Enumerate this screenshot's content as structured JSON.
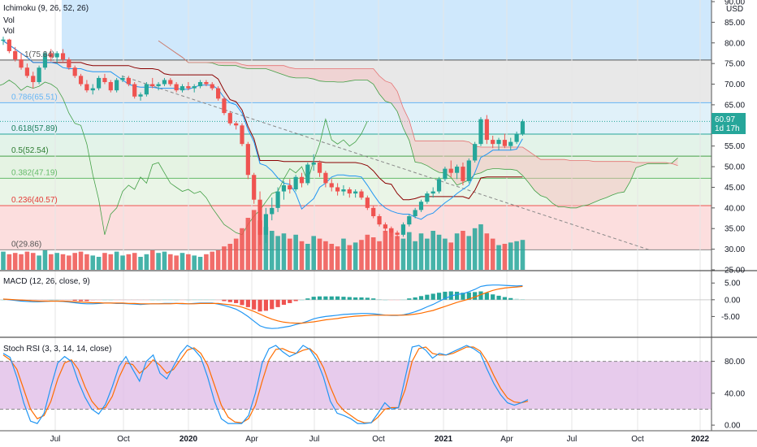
{
  "chart_data": {
    "type": "candlestick",
    "indicator_labels": {
      "ichimoku": "Ichimoku (9, 26, 52, 26)",
      "vol1": "Vol",
      "vol2": "Vol",
      "macd": "MACD (12, 26, close, 9)",
      "stoch": "Stoch RSI (3, 3, 14, 14, close)"
    },
    "currency": "USD",
    "price_axis": [
      "90.00",
      "85.00",
      "80.00",
      "75.00",
      "70.00",
      "65.00",
      "60.00",
      "55.00",
      "50.00",
      "45.00",
      "40.00",
      "35.00",
      "30.00",
      "25.00"
    ],
    "macd_axis": [
      "5.00",
      "0.00",
      "-5.00"
    ],
    "stoch_axis": [
      "80.00",
      "40.00",
      "0.00"
    ],
    "time_axis": [
      {
        "label": "Jul",
        "bold": false
      },
      {
        "label": "Oct",
        "bold": false
      },
      {
        "label": "2020",
        "bold": true
      },
      {
        "label": "Apr",
        "bold": false
      },
      {
        "label": "Jul",
        "bold": false
      },
      {
        "label": "Oct",
        "bold": false
      },
      {
        "label": "2021",
        "bold": true
      },
      {
        "label": "Apr",
        "bold": false
      },
      {
        "label": "Jul",
        "bold": false
      },
      {
        "label": "Oct",
        "bold": false
      },
      {
        "label": "2022",
        "bold": true
      }
    ],
    "last_price": "60.97",
    "last_price_timer": "1d 17h",
    "fib_levels": [
      {
        "label": "1(75.84)",
        "value": 75.84
      },
      {
        "label": "0.786(65.51)",
        "value": 65.51
      },
      {
        "label": "0.618(57.89)",
        "value": 57.89
      },
      {
        "label": "0.5(52.54)",
        "value": 52.54
      },
      {
        "label": "0.382(47.19)",
        "value": 47.19
      },
      {
        "label": "0.236(40.57)",
        "value": 40.57
      },
      {
        "label": "0(29.86)",
        "value": 29.86
      }
    ],
    "colors": {
      "up": "#26a69a",
      "down": "#ef5350",
      "stoch_band": "#e1bee7",
      "macd_line": "#2196f3",
      "signal_line": "#ff6d00"
    },
    "candles": [
      [
        80.5,
        81.5,
        79.5,
        80.8
      ],
      [
        80.8,
        81.0,
        77.5,
        78.0
      ],
      [
        78.0,
        79.0,
        75.5,
        76.0
      ],
      [
        76.0,
        77.5,
        73.5,
        74.0
      ],
      [
        74.0,
        75.0,
        71.5,
        72.0
      ],
      [
        72.0,
        73.0,
        69.0,
        70.5
      ],
      [
        70.5,
        74.5,
        70.0,
        74.0
      ],
      [
        74.0,
        78.0,
        73.5,
        77.5
      ],
      [
        77.5,
        78.5,
        75.5,
        76.5
      ],
      [
        76.5,
        78.0,
        75.0,
        77.5
      ],
      [
        77.5,
        78.5,
        75.5,
        76.0
      ],
      [
        76.0,
        76.5,
        73.5,
        74.0
      ],
      [
        74.0,
        74.5,
        71.5,
        72.0
      ],
      [
        72.0,
        72.5,
        69.5,
        70.0
      ],
      [
        70.0,
        71.0,
        68.0,
        68.5
      ],
      [
        68.5,
        70.0,
        67.5,
        69.0
      ],
      [
        69.0,
        72.0,
        68.5,
        71.5
      ],
      [
        71.5,
        72.5,
        70.0,
        70.5
      ],
      [
        70.5,
        71.0,
        68.0,
        68.5
      ],
      [
        68.5,
        71.5,
        68.0,
        71.0
      ],
      [
        71.0,
        72.0,
        70.5,
        71.5
      ],
      [
        71.5,
        72.0,
        69.5,
        70.0
      ],
      [
        70.0,
        70.5,
        66.5,
        67.0
      ],
      [
        67.0,
        68.0,
        66.0,
        67.5
      ],
      [
        67.5,
        70.5,
        67.0,
        70.0
      ],
      [
        70.0,
        71.5,
        69.0,
        69.5
      ],
      [
        69.5,
        70.5,
        68.5,
        70.0
      ],
      [
        70.0,
        71.5,
        69.5,
        71.0
      ],
      [
        71.0,
        71.5,
        69.5,
        70.0
      ],
      [
        70.0,
        70.5,
        68.0,
        68.5
      ],
      [
        68.5,
        70.0,
        68.0,
        69.5
      ],
      [
        69.5,
        70.5,
        68.5,
        69.0
      ],
      [
        69.0,
        70.0,
        68.0,
        69.5
      ],
      [
        69.5,
        71.0,
        69.0,
        70.5
      ],
      [
        70.5,
        71.0,
        69.5,
        70.0
      ],
      [
        70.0,
        70.5,
        68.5,
        69.0
      ],
      [
        69.0,
        69.5,
        66.0,
        66.5
      ],
      [
        66.5,
        67.0,
        62.5,
        63.0
      ],
      [
        63.0,
        63.5,
        60.0,
        60.5
      ],
      [
        60.5,
        61.0,
        59.0,
        60.0
      ],
      [
        60.0,
        60.5,
        55.0,
        55.5
      ],
      [
        55.5,
        56.0,
        47.0,
        48.0
      ],
      [
        48.0,
        48.5,
        41.0,
        42.0
      ],
      [
        42.0,
        44.0,
        31.0,
        33.5
      ],
      [
        33.5,
        40.0,
        31.5,
        38.5
      ],
      [
        38.5,
        42.5,
        37.0,
        40.0
      ],
      [
        40.0,
        45.0,
        39.0,
        44.0
      ],
      [
        44.0,
        46.5,
        42.0,
        45.5
      ],
      [
        45.5,
        47.0,
        43.5,
        44.5
      ],
      [
        44.5,
        48.0,
        44.0,
        47.5
      ],
      [
        47.5,
        48.5,
        45.0,
        46.0
      ],
      [
        46.0,
        51.0,
        45.5,
        50.5
      ],
      [
        50.5,
        53.0,
        49.0,
        51.0
      ],
      [
        51.0,
        51.5,
        47.5,
        48.5
      ],
      [
        48.5,
        49.0,
        45.0,
        46.0
      ],
      [
        46.0,
        47.0,
        44.0,
        45.0
      ],
      [
        45.0,
        46.0,
        43.0,
        44.0
      ],
      [
        44.0,
        45.5,
        43.0,
        44.5
      ],
      [
        44.5,
        45.0,
        42.5,
        43.5
      ],
      [
        43.5,
        44.5,
        42.5,
        44.0
      ],
      [
        44.0,
        44.5,
        42.0,
        42.5
      ],
      [
        42.5,
        43.0,
        39.5,
        40.0
      ],
      [
        40.0,
        40.5,
        37.5,
        38.0
      ],
      [
        38.0,
        38.5,
        35.5,
        36.0
      ],
      [
        36.0,
        36.5,
        34.0,
        35.0
      ],
      [
        35.0,
        35.5,
        33.0,
        34.0
      ],
      [
        34.0,
        34.5,
        32.5,
        33.5
      ],
      [
        33.5,
        36.5,
        33.0,
        36.0
      ],
      [
        36.0,
        38.5,
        35.5,
        38.0
      ],
      [
        38.0,
        40.0,
        37.5,
        39.5
      ],
      [
        39.5,
        42.0,
        39.0,
        41.5
      ],
      [
        41.5,
        44.0,
        41.0,
        43.5
      ],
      [
        43.5,
        45.0,
        42.5,
        44.0
      ],
      [
        44.0,
        47.5,
        43.5,
        47.0
      ],
      [
        47.0,
        50.0,
        46.5,
        49.5
      ],
      [
        49.5,
        51.5,
        47.5,
        48.5
      ],
      [
        48.5,
        50.5,
        47.0,
        50.0
      ],
      [
        50.0,
        51.0,
        45.5,
        46.5
      ],
      [
        46.5,
        52.0,
        46.0,
        51.5
      ],
      [
        51.5,
        56.0,
        51.0,
        55.5
      ],
      [
        55.5,
        62.0,
        55.0,
        61.5
      ],
      [
        61.5,
        62.5,
        55.5,
        56.5
      ],
      [
        56.5,
        57.5,
        54.5,
        55.5
      ],
      [
        55.5,
        57.0,
        54.0,
        56.5
      ],
      [
        56.5,
        58.0,
        54.5,
        55.0
      ],
      [
        55.0,
        57.0,
        54.0,
        56.0
      ],
      [
        56.0,
        58.5,
        55.5,
        58.0
      ],
      [
        58.0,
        61.5,
        57.5,
        61.0
      ]
    ],
    "volumes": [
      14,
      12,
      13,
      12,
      14,
      13,
      11,
      15,
      12,
      13,
      12,
      11,
      13,
      14,
      12,
      11,
      10,
      13,
      12,
      14,
      11,
      12,
      13,
      10,
      12,
      15,
      13,
      14,
      12,
      11,
      13,
      12,
      11,
      10,
      12,
      14,
      15,
      18,
      20,
      24,
      32,
      40,
      46,
      38,
      33,
      30,
      26,
      28,
      24,
      27,
      22,
      20,
      26,
      24,
      22,
      20,
      18,
      24,
      19,
      21,
      23,
      27,
      25,
      22,
      30,
      32,
      26,
      24,
      29,
      22,
      28,
      24,
      30,
      27,
      24,
      21,
      28,
      30,
      26,
      32,
      35,
      28,
      24,
      19,
      20,
      21,
      22,
      23
    ],
    "macd": [
      0.2,
      0.0,
      -0.2,
      -0.4,
      -0.5,
      -0.6,
      -0.6,
      -0.5,
      -0.4,
      -0.4,
      -0.5,
      -0.7,
      -0.9,
      -1.1,
      -1.2,
      -1.2,
      -1.1,
      -1.0,
      -1.0,
      -1.1,
      -1.1,
      -1.2,
      -1.3,
      -1.4,
      -1.3,
      -1.2,
      -1.2,
      -1.1,
      -1.1,
      -1.1,
      -1.2,
      -1.2,
      -1.1,
      -1.0,
      -1.0,
      -1.0,
      -1.3,
      -1.7,
      -2.2,
      -2.8,
      -3.8,
      -5.0,
      -6.4,
      -7.8,
      -8.4,
      -8.6,
      -8.5,
      -8.2,
      -7.9,
      -7.4,
      -7.0,
      -6.4,
      -5.7,
      -5.3,
      -5.0,
      -4.8,
      -4.6,
      -4.4,
      -4.3,
      -4.2,
      -4.1,
      -4.1,
      -4.2,
      -4.4,
      -4.6,
      -4.7,
      -4.7,
      -4.5,
      -4.1,
      -3.6,
      -2.9,
      -2.1,
      -1.4,
      -0.5,
      0.4,
      1.1,
      1.6,
      1.8,
      2.4,
      3.1,
      4.0,
      4.3,
      4.4,
      4.4,
      4.3,
      4.2,
      4.1,
      4.2
    ],
    "signal": [
      0.2,
      0.1,
      0.0,
      -0.1,
      -0.2,
      -0.3,
      -0.4,
      -0.4,
      -0.4,
      -0.4,
      -0.4,
      -0.5,
      -0.6,
      -0.7,
      -0.8,
      -0.9,
      -0.9,
      -1.0,
      -1.0,
      -1.0,
      -1.0,
      -1.1,
      -1.1,
      -1.2,
      -1.2,
      -1.2,
      -1.2,
      -1.2,
      -1.2,
      -1.1,
      -1.1,
      -1.2,
      -1.2,
      -1.1,
      -1.1,
      -1.1,
      -1.1,
      -1.3,
      -1.5,
      -1.8,
      -2.2,
      -2.8,
      -3.5,
      -4.3,
      -5.1,
      -5.8,
      -6.3,
      -6.7,
      -6.9,
      -7.0,
      -7.0,
      -6.8,
      -6.6,
      -6.3,
      -6.0,
      -5.8,
      -5.6,
      -5.3,
      -5.1,
      -4.9,
      -4.8,
      -4.7,
      -4.6,
      -4.6,
      -4.6,
      -4.6,
      -4.6,
      -4.6,
      -4.5,
      -4.3,
      -4.0,
      -3.6,
      -3.2,
      -2.6,
      -2.0,
      -1.4,
      -0.8,
      -0.3,
      0.2,
      0.8,
      1.5,
      2.2,
      2.8,
      3.2,
      3.5,
      3.7,
      3.8,
      4.0
    ],
    "stoch_k": [
      90,
      85,
      60,
      28,
      5,
      2,
      15,
      48,
      78,
      86,
      80,
      55,
      35,
      20,
      14,
      26,
      48,
      74,
      86,
      70,
      55,
      80,
      88,
      65,
      58,
      74,
      90,
      100,
      95,
      85,
      60,
      30,
      8,
      2,
      2,
      2,
      12,
      40,
      78,
      96,
      100,
      92,
      86,
      90,
      100,
      95,
      82,
      60,
      30,
      15,
      12,
      8,
      2,
      2,
      3,
      15,
      28,
      20,
      22,
      60,
      98,
      100,
      94,
      84,
      90,
      88,
      92,
      96,
      100,
      96,
      90,
      70,
      52,
      38,
      28,
      25,
      28,
      32
    ],
    "stoch_d": [
      88,
      82,
      70,
      45,
      20,
      8,
      12,
      30,
      58,
      78,
      82,
      70,
      48,
      30,
      20,
      22,
      36,
      60,
      78,
      76,
      65,
      72,
      82,
      75,
      65,
      70,
      82,
      94,
      97,
      90,
      75,
      50,
      25,
      10,
      4,
      3,
      8,
      25,
      55,
      82,
      95,
      96,
      92,
      90,
      94,
      96,
      88,
      72,
      48,
      28,
      18,
      12,
      6,
      3,
      3,
      10,
      20,
      22,
      22,
      45,
      80,
      96,
      98,
      90,
      88,
      88,
      90,
      94,
      98,
      98,
      93,
      80,
      62,
      46,
      34,
      29,
      28,
      30
    ],
    "rsi_band": [
      20,
      80
    ],
    "macd_ylim": [
      -10,
      7
    ],
    "ylim": [
      25,
      90
    ],
    "stoch_ylim": [
      -5,
      100
    ]
  }
}
